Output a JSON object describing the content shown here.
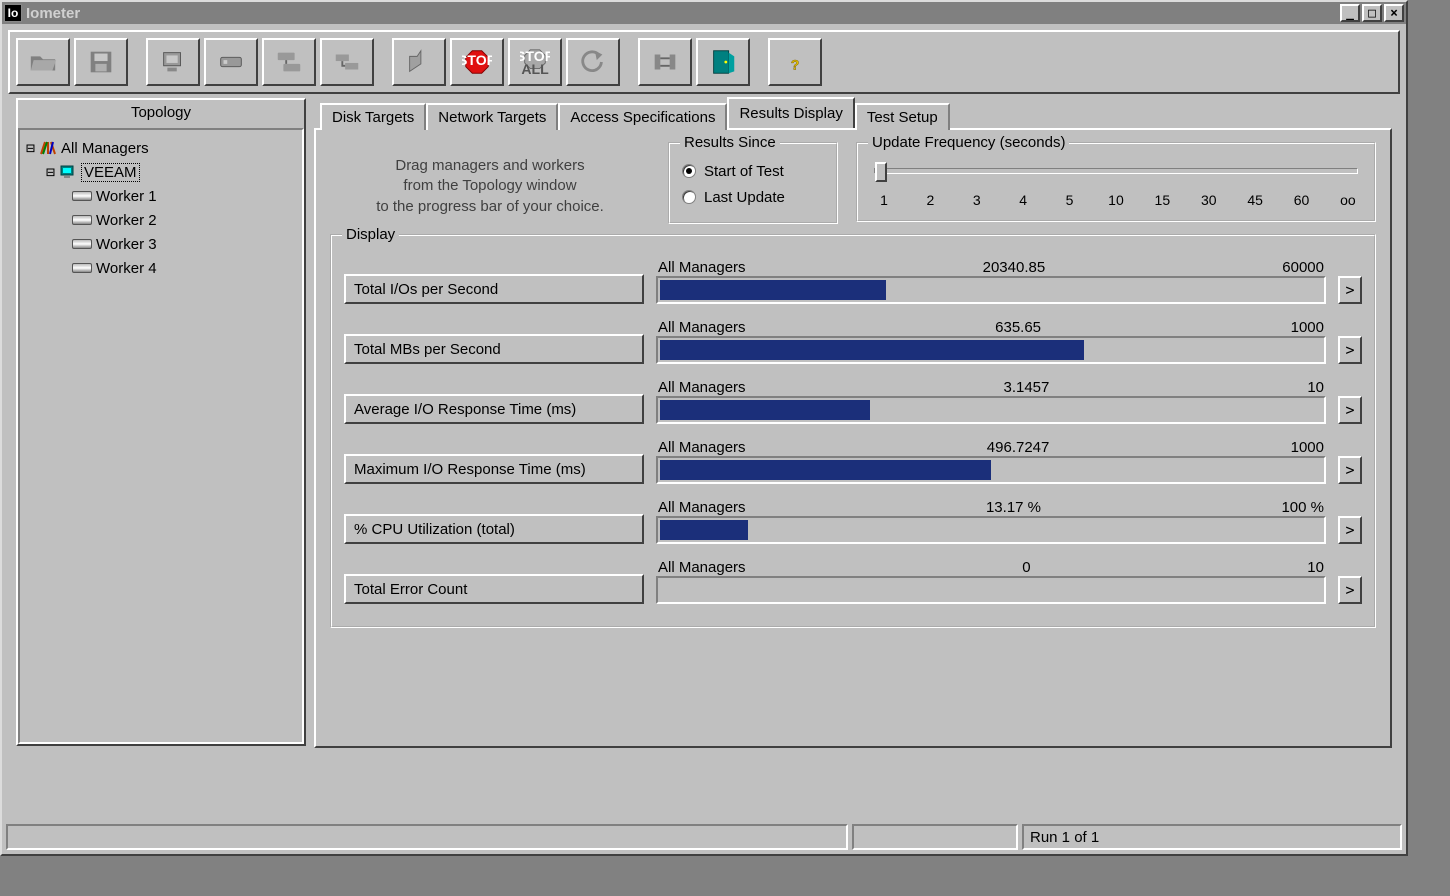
{
  "window": {
    "title": "Iometer",
    "app_icon_text": "Io"
  },
  "toolbar_icons": [
    "open-icon",
    "save-icon",
    "new-manager-icon",
    "new-worker-icon",
    "duplicate-worker-icon",
    "copy-spec-icon",
    "start-icon",
    "stop-icon",
    "stop-all-icon",
    "reset-icon",
    "bind-icon",
    "exit-icon",
    "help-icon"
  ],
  "topology": {
    "header": "Topology",
    "root_label": "All Managers",
    "manager_label": "VEEAM",
    "workers": [
      "Worker 1",
      "Worker 2",
      "Worker 3",
      "Worker 4"
    ]
  },
  "tabs": {
    "items": [
      "Disk Targets",
      "Network Targets",
      "Access Specifications",
      "Results Display",
      "Test Setup"
    ],
    "active_index": 3
  },
  "instructions": "Drag managers and workers\nfrom the Topology window\nto the progress bar of your choice.",
  "results_since": {
    "legend": "Results Since",
    "options": [
      "Start of Test",
      "Last Update"
    ],
    "selected_index": 0
  },
  "update_frequency": {
    "legend": "Update Frequency (seconds)",
    "ticks": [
      "1",
      "2",
      "3",
      "4",
      "5",
      "10",
      "15",
      "30",
      "45",
      "60",
      "oo"
    ],
    "thumb_tick_index": 0
  },
  "display": {
    "legend": "Display",
    "bar_color": "#1b2f7a",
    "rows": [
      {
        "label": "Total I/Os per Second",
        "scope": "All Managers",
        "value": "20340.85",
        "max": "60000",
        "pct": 33.9
      },
      {
        "label": "Total MBs per Second",
        "scope": "All Managers",
        "value": "635.65",
        "max": "1000",
        "pct": 63.6
      },
      {
        "label": "Average I/O Response Time (ms)",
        "scope": "All Managers",
        "value": "3.1457",
        "max": "10",
        "pct": 31.5
      },
      {
        "label": "Maximum I/O Response Time (ms)",
        "scope": "All Managers",
        "value": "496.7247",
        "max": "1000",
        "pct": 49.7
      },
      {
        "label": "% CPU Utilization (total)",
        "scope": "All Managers",
        "value": "13.17 %",
        "max": "100 %",
        "pct": 13.2
      },
      {
        "label": "Total Error Count",
        "scope": "All Managers",
        "value": "0",
        "max": "10",
        "pct": 0
      }
    ]
  },
  "statusbar": {
    "run_text": "Run 1 of 1"
  },
  "colors": {
    "face": "#c0c0c0",
    "shadow": "#808080",
    "dark": "#404040",
    "highlight": "#ffffff",
    "title_inactive": "#808080"
  }
}
